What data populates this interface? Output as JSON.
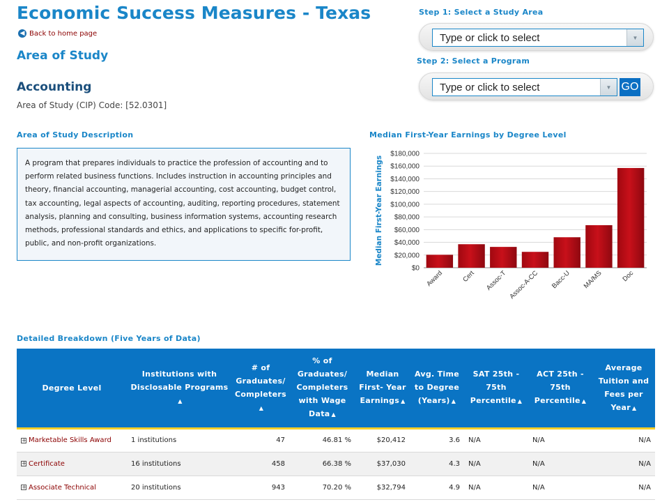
{
  "page": {
    "title": "Economic Success Measures - Texas",
    "back_link": "Back to home page",
    "area_heading": "Area of Study",
    "program_name": "Accounting",
    "cip_code": "Area of Study (CIP) Code: [52.0301]"
  },
  "steps": {
    "step1_label": "Step 1: Select a Study Area",
    "step1_placeholder": "Type or click to select",
    "step2_label": "Step 2: Select a Program",
    "step2_placeholder": "Type or click to select",
    "go_label": "GO"
  },
  "description": {
    "label": "Area of Study Description",
    "text": "A program that prepares individuals to practice the profession of accounting and to perform related business functions. Includes instruction in accounting principles and theory, financial accounting, managerial accounting, cost accounting, budget control, tax accounting, legal aspects of accounting, auditing, reporting procedures, statement analysis, planning and consulting, business information systems, accounting research methods, professional standards and ethics, and applications to specific for-profit, public, and non-profit organizations."
  },
  "chart_data": {
    "type": "bar",
    "title": "Median First-Year Earnings by Degree Level",
    "xlabel": "",
    "ylabel": "Median First-Year Earnings",
    "categories": [
      "Award",
      "Cert",
      "Assoc-T",
      "Assoc-A-CC",
      "Bacc-U",
      "MA/MS",
      "Doc"
    ],
    "values": [
      20412,
      37030,
      32794,
      25000,
      48000,
      67000,
      157000
    ],
    "ylim": [
      0,
      180000
    ],
    "yticks": [
      0,
      20000,
      40000,
      60000,
      80000,
      100000,
      120000,
      140000,
      160000,
      180000
    ],
    "ytick_labels": [
      "$0",
      "$20,000",
      "$40,000",
      "$60,000",
      "$80,000",
      "$100,000",
      "$120,000",
      "$140,000",
      "$160,000",
      "$180,000"
    ],
    "bar_color": "#c8101a",
    "grid": true
  },
  "table": {
    "label": "Detailed Breakdown (Five Years of Data)",
    "columns": [
      "Degree Level",
      "Institutions with Disclosable Programs",
      "# of Graduates/ Completers",
      "% of Graduates/ Completers with Wage Data",
      "Median First- Year Earnings",
      "Avg. Time to Degree (Years)",
      "SAT 25th - 75th Percentile",
      "ACT 25th - 75th Percentile",
      "Average Tuition and Fees per Year"
    ],
    "rows": [
      [
        "Marketable Skills Award",
        "1 institutions",
        "47",
        "46.81 %",
        "$20,412",
        "3.6",
        "N/A",
        "N/A",
        "N/A"
      ],
      [
        "Certificate",
        "16 institutions",
        "458",
        "66.38 %",
        "$37,030",
        "4.3",
        "N/A",
        "N/A",
        "N/A"
      ],
      [
        "Associate Technical",
        "20 institutions",
        "943",
        "70.20 %",
        "$32,794",
        "4.9",
        "N/A",
        "N/A",
        "N/A"
      ]
    ]
  }
}
